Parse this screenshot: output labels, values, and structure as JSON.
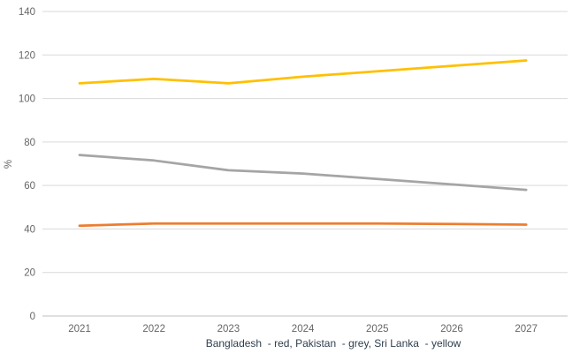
{
  "chart_data": {
    "type": "line",
    "title": "",
    "xlabel": "",
    "ylabel": "%",
    "categories": [
      "2021",
      "2022",
      "2023",
      "2024",
      "2025",
      "2026",
      "2027"
    ],
    "series": [
      {
        "name": "Bangladesh",
        "color_name": "red",
        "color": "#ED7D31",
        "values": [
          41.5,
          42.5,
          42.5,
          42.5,
          42.5,
          42.3,
          42
        ]
      },
      {
        "name": "Pakistan",
        "color_name": "grey",
        "color": "#A5A5A5",
        "values": [
          74,
          71.5,
          67,
          65.5,
          63,
          60.5,
          58
        ]
      },
      {
        "name": "Sri Lanka",
        "color_name": "yellow",
        "color": "#FFC000",
        "values": [
          107,
          109,
          107,
          110,
          112.5,
          115,
          117.5
        ]
      }
    ],
    "ylim": [
      0,
      140
    ],
    "yticks": [
      0,
      20,
      40,
      60,
      80,
      100,
      120,
      140
    ],
    "grid": true,
    "legend": "none",
    "caption": "Bangladesh  - red, Pakistan  - grey, Sri Lanka  - yellow"
  },
  "style": {
    "tick_label_color": "#666666",
    "gridline_color": "#D9D9D9",
    "axis_line_color": "#BFBFBF",
    "caption_color": "#2F3F4E",
    "background_color": "#FFFFFF"
  }
}
